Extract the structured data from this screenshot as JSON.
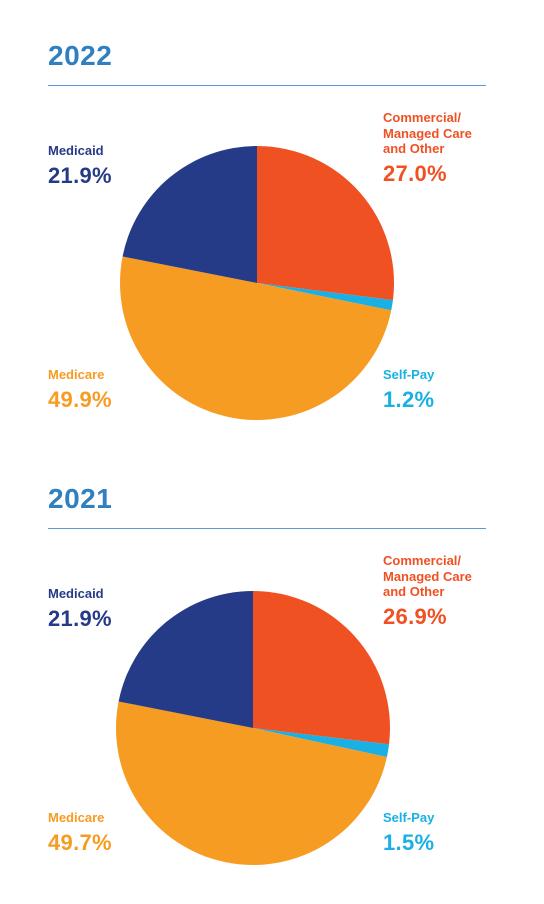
{
  "chart_data": [
    {
      "type": "pie",
      "title": "2022",
      "slices": [
        {
          "label": "Commercial/ Managed Care and Other",
          "value": 27.0,
          "display": "27.0%",
          "color": "#f05123"
        },
        {
          "label": "Self-Pay",
          "value": 1.2,
          "display": "1.2%",
          "color": "#1ab0e3"
        },
        {
          "label": "Medicare",
          "value": 49.9,
          "display": "49.9%",
          "color": "#f79c22"
        },
        {
          "label": "Medicaid",
          "value": 21.9,
          "display": "21.9%",
          "color": "#253b87"
        }
      ]
    },
    {
      "type": "pie",
      "title": "2021",
      "slices": [
        {
          "label": "Commercial/ Managed Care and Other",
          "value": 26.9,
          "display": "26.9%",
          "color": "#f05123"
        },
        {
          "label": "Self-Pay",
          "value": 1.5,
          "display": "1.5%",
          "color": "#1ab0e3"
        },
        {
          "label": "Medicare",
          "value": 49.7,
          "display": "49.7%",
          "color": "#f79c22"
        },
        {
          "label": "Medicaid",
          "value": 21.9,
          "display": "21.9%",
          "color": "#253b87"
        }
      ]
    }
  ],
  "colors": {
    "heading": "#2f7fc1",
    "rule": "#5b9bd5"
  }
}
